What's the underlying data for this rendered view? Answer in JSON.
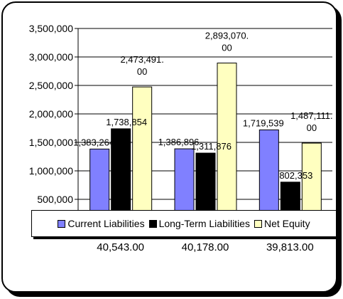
{
  "chart_data": {
    "type": "bar",
    "title": "",
    "xlabel": "",
    "ylabel": "",
    "categories": [
      "40,543.00",
      "40,178.00",
      "39,813.00"
    ],
    "series": [
      {
        "name": "Current Liabilities",
        "color": "#8080ff",
        "values": [
          1383264,
          1386896,
          1719539
        ],
        "labels": [
          "1,383,264",
          "1,386,896",
          "1,719,539"
        ]
      },
      {
        "name": "Long-Term Liabilities",
        "color": "#000000",
        "values": [
          1738854,
          1311876,
          802353
        ],
        "labels": [
          "1,738,854",
          "1,311,876",
          "802,353"
        ]
      },
      {
        "name": "Net Equity",
        "color": "#ffffc0",
        "values": [
          2473491,
          2893070,
          1487111
        ],
        "labels": [
          "2,473,491.00",
          "2,893,070.00",
          "1,487,111.00"
        ]
      }
    ],
    "yticks": [
      "500,000",
      "1,000,000",
      "1,500,000",
      "2,000,000",
      "2,500,000",
      "3,000,000",
      "3,500,000"
    ],
    "ylim": [
      0,
      3500000
    ],
    "grid": true,
    "legend": "bottom"
  }
}
